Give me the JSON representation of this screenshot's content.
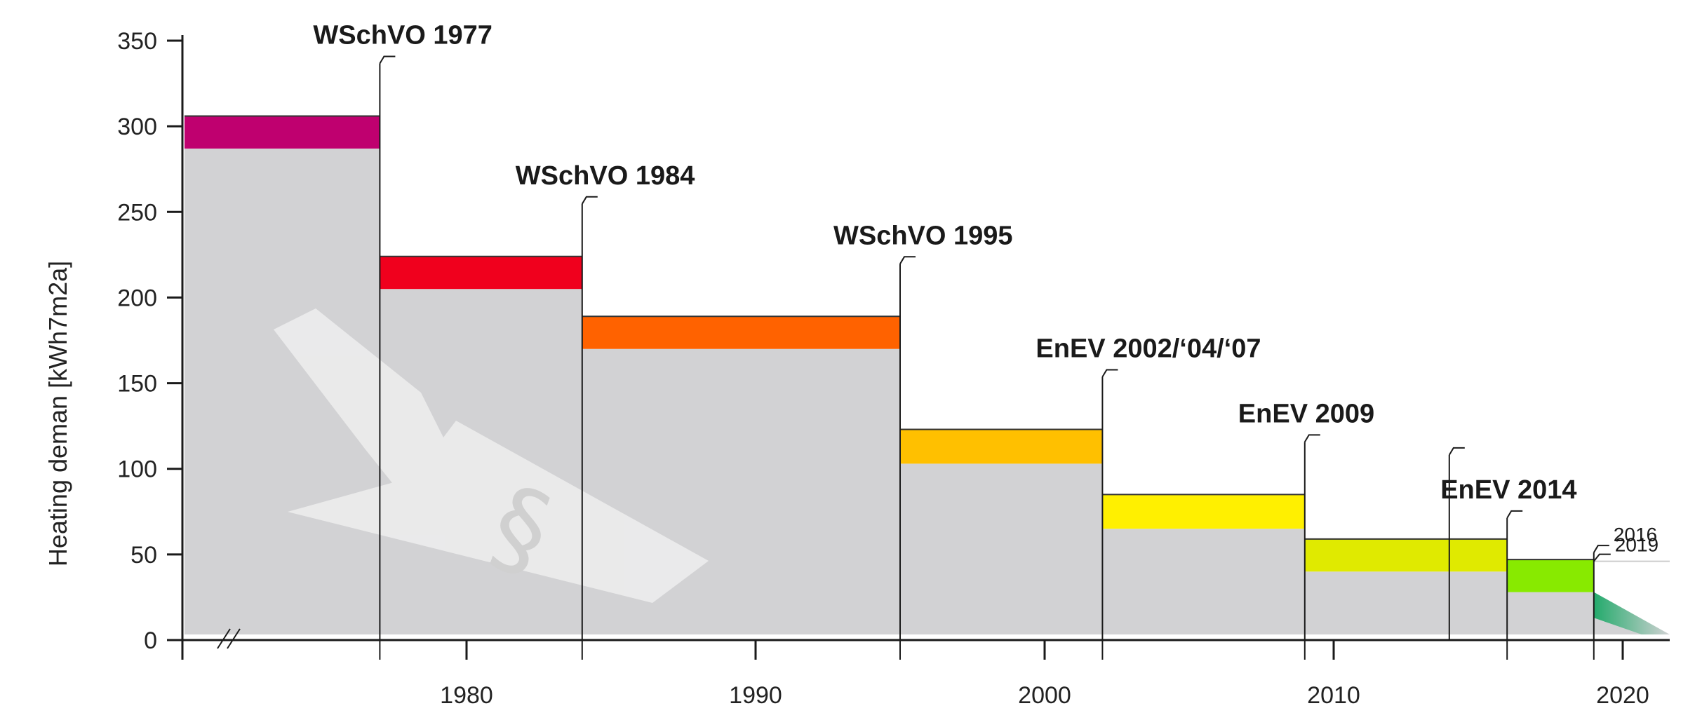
{
  "chart_data": {
    "type": "bar",
    "title": "",
    "xlabel": "",
    "ylabel": "Heating deman [kWh7m2a]",
    "ylim": [
      0,
      350
    ],
    "xlim": [
      1970,
      2021
    ],
    "y_ticks": [
      0,
      50,
      100,
      150,
      200,
      250,
      300,
      350
    ],
    "x_ticks": [
      1980,
      1990,
      2000,
      2010,
      2020
    ],
    "grid": false,
    "legend": "none",
    "axis_break": true,
    "regulations": [
      {
        "label": "WSchVO 1977",
        "start": 1970,
        "end": 1977,
        "low": 287,
        "high": 306,
        "color": "#bf006f"
      },
      {
        "label": "WSchVO 1984",
        "start": 1977,
        "end": 1984,
        "low": 205,
        "high": 224,
        "color": "#f0001d"
      },
      {
        "label": "WSchVO 1995",
        "start": 1984,
        "end": 1995,
        "low": 170,
        "high": 189,
        "color": "#ff6200"
      },
      {
        "label": "EnEV 2002/‘04/‘07",
        "start": 1995,
        "end": 2002,
        "low": 103,
        "high": 123,
        "color": "#ffc000"
      },
      {
        "label": "EnEV 2009",
        "start": 2002,
        "end": 2009,
        "low": 65,
        "high": 85,
        "color": "#fff000"
      },
      {
        "label": "EnEV 2014",
        "start": 2009,
        "end": 2016,
        "low": 40,
        "high": 59,
        "color": "#e0ea00"
      },
      {
        "label": "2016",
        "start": 2016,
        "end": 2019,
        "low": 28,
        "high": 47,
        "color": "#88ea00"
      }
    ],
    "future_label": "2019",
    "future_level": 38
  }
}
